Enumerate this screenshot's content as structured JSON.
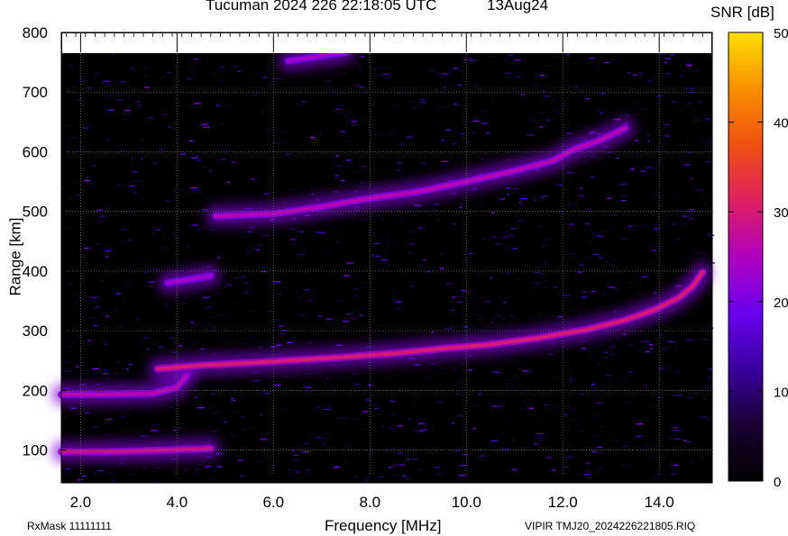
{
  "header": {
    "title": "Tucuman 2024 226 22:18:05 UTC",
    "date": "13Aug24"
  },
  "footer": {
    "rxmask": "RxMask 11111111",
    "source": "VIPIR  TMJ20_2024226221805.RIQ"
  },
  "chart_data": {
    "type": "heatmap",
    "title": "Tucuman 2024 226 22:18:05 UTC",
    "xlabel": "Frequency [MHz]",
    "ylabel": "Range [km]",
    "xlim": [
      1.6,
      15.1
    ],
    "ylim": [
      45,
      800
    ],
    "x_ticks": [
      "2.0",
      "4.0",
      "6.0",
      "8.0",
      "10.0",
      "12.0",
      "14.0"
    ],
    "y_ticks": [
      "100",
      "200",
      "300",
      "400",
      "500",
      "600",
      "700",
      "800"
    ],
    "x_tick_values": [
      2,
      4,
      6,
      8,
      10,
      12,
      14
    ],
    "y_tick_values": [
      100,
      200,
      300,
      400,
      500,
      600,
      700,
      800
    ],
    "grid": true,
    "colorbar": {
      "label": "SNR [dB]",
      "range": [
        0,
        50
      ],
      "ticks": [
        "0",
        "10",
        "20",
        "30",
        "40",
        "50"
      ],
      "tick_values": [
        0,
        10,
        20,
        30,
        40,
        50
      ],
      "colors": [
        "#000000",
        "#1a0030",
        "#3a00a0",
        "#6a00f0",
        "#b000c0",
        "#e02060",
        "#f05010",
        "#f89000",
        "#ffe000"
      ]
    },
    "traces": [
      {
        "name": "",
        "points": [
          [
            1.6,
            97
          ],
          [
            2.5,
            97
          ],
          [
            3.5,
            99
          ],
          [
            4.5,
            102
          ],
          [
            4.7,
            103
          ]
        ],
        "snr": 28
      },
      {
        "name": "",
        "points": [
          [
            1.6,
            193
          ],
          [
            2.5,
            193
          ],
          [
            3.5,
            195
          ],
          [
            4.0,
            205
          ],
          [
            4.2,
            225
          ]
        ],
        "snr": 26
      },
      {
        "name": "",
        "points": [
          [
            3.6,
            236
          ],
          [
            4.5,
            242
          ],
          [
            5.5,
            246
          ],
          [
            6.5,
            251
          ],
          [
            7.5,
            256
          ],
          [
            8.5,
            262
          ],
          [
            9.5,
            270
          ],
          [
            10.5,
            277
          ],
          [
            11.5,
            288
          ],
          [
            12.5,
            302
          ],
          [
            13.3,
            318
          ],
          [
            13.9,
            335
          ],
          [
            14.4,
            355
          ],
          [
            14.7,
            375
          ],
          [
            14.9,
            398
          ]
        ],
        "snr": 30
      },
      {
        "name": "",
        "points": [
          [
            4.8,
            492
          ],
          [
            6.0,
            496
          ],
          [
            7.0,
            508
          ],
          [
            8.0,
            522
          ],
          [
            9.0,
            533
          ],
          [
            10.0,
            550
          ],
          [
            11.0,
            568
          ],
          [
            11.8,
            585
          ],
          [
            12.2,
            603
          ],
          [
            12.8,
            620
          ],
          [
            13.3,
            640
          ]
        ],
        "snr": 26
      },
      {
        "name": "",
        "points": [
          [
            3.8,
            380
          ],
          [
            4.7,
            392
          ]
        ],
        "snr": 24
      },
      {
        "name": "",
        "points": [
          [
            6.3,
            752
          ],
          [
            7.5,
            767
          ]
        ],
        "snr": 24
      }
    ]
  }
}
